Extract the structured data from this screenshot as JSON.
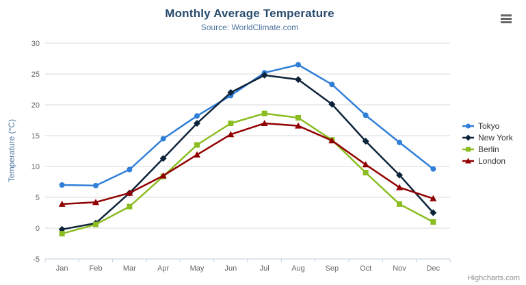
{
  "title": "Monthly Average Temperature",
  "subtitle": "Source: WorldClimate.com",
  "credits": "Highcharts.com",
  "theme": {
    "background": "#ffffff",
    "title_color": "#274b6d",
    "subtitle_color": "#4d759e",
    "axis_title_color": "#4d759e",
    "axis_label_color": "#666666",
    "gridline_color": "#d8d8d8",
    "axis_line_color": "#c0d0e0",
    "tick_color": "#c0d0e0",
    "legend_text_color": "#333333",
    "credits_color": "#909090",
    "export_icon_color": "#666666"
  },
  "chart_data": {
    "type": "line",
    "title": "Monthly Average Temperature",
    "subtitle": "Source: WorldClimate.com",
    "xlabel": "",
    "ylabel": "Temperature (°C)",
    "ylim": [
      -5,
      30
    ],
    "yticks": [
      -5,
      0,
      5,
      10,
      15,
      20,
      25,
      30
    ],
    "grid": true,
    "legend_position": "right",
    "categories": [
      "Jan",
      "Feb",
      "Mar",
      "Apr",
      "May",
      "Jun",
      "Jul",
      "Aug",
      "Sep",
      "Oct",
      "Nov",
      "Dec"
    ],
    "series": [
      {
        "name": "Tokyo",
        "color": "#2f7ed8",
        "marker": "circle",
        "values": [
          7.0,
          6.9,
          9.5,
          14.5,
          18.2,
          21.5,
          25.2,
          26.5,
          23.3,
          18.3,
          13.9,
          9.6
        ]
      },
      {
        "name": "New York",
        "color": "#0d233a",
        "marker": "diamond",
        "values": [
          -0.2,
          0.8,
          5.7,
          11.3,
          17.0,
          22.0,
          24.8,
          24.1,
          20.1,
          14.1,
          8.6,
          2.5
        ]
      },
      {
        "name": "Berlin",
        "color": "#8bbc21",
        "marker": "square",
        "values": [
          -0.9,
          0.6,
          3.5,
          8.4,
          13.5,
          17.0,
          18.6,
          17.9,
          14.3,
          9.0,
          3.9,
          1.0
        ]
      },
      {
        "name": "London",
        "color": "#910000",
        "marker": "triangle",
        "values": [
          3.9,
          4.2,
          5.7,
          8.5,
          11.9,
          15.2,
          17.0,
          16.6,
          14.2,
          10.3,
          6.6,
          4.8
        ]
      }
    ]
  }
}
